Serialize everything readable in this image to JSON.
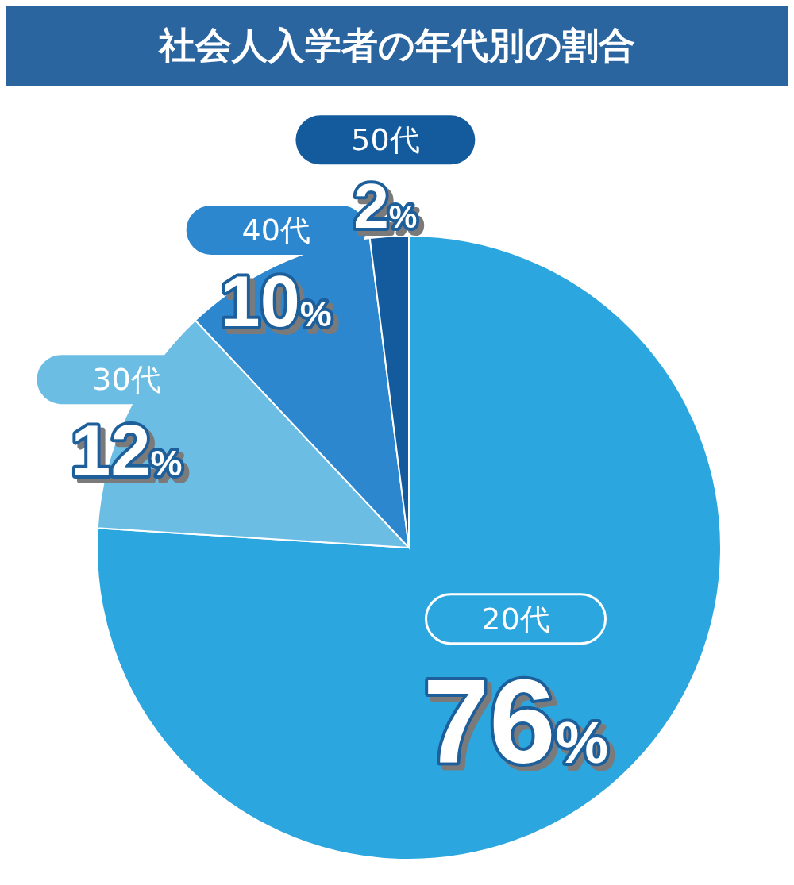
{
  "chart_data": {
    "type": "pie",
    "title": "社会人入学者の年代別の割合",
    "categories": [
      "20代",
      "30代",
      "40代",
      "50代"
    ],
    "values": [
      76,
      12,
      10,
      2
    ],
    "value_labels": [
      "76%",
      "12%",
      "10%",
      "2%"
    ],
    "colors": [
      "#2ba6df",
      "#6bbde4",
      "#2d87cf",
      "#135b9c"
    ]
  }
}
